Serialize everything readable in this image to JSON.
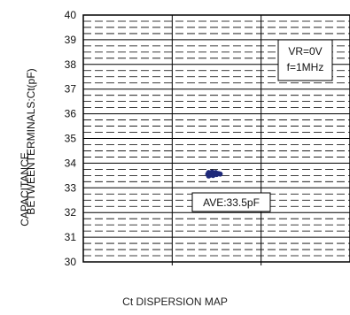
{
  "chart_data": {
    "type": "scatter",
    "title": "Ct DISPERSION MAP",
    "ylabel_lines": [
      "CAPACITANCE",
      "BETWEENTERMINALS:Ct(pF)"
    ],
    "xlabel": "",
    "ylim": [
      30,
      40
    ],
    "yticks": [
      30,
      31,
      32,
      33,
      34,
      35,
      36,
      37,
      38,
      39,
      40
    ],
    "x_range": [
      0,
      3
    ],
    "grid": true,
    "conditions": [
      "VR=0V",
      "f=1MHz"
    ],
    "average_label": "AVE:33.5pF",
    "series": [
      {
        "color": "#1f2a7a",
        "points": [
          {
            "x": 1.4,
            "y": 33.55
          },
          {
            "x": 1.41,
            "y": 33.62
          },
          {
            "x": 1.41,
            "y": 33.48
          },
          {
            "x": 1.43,
            "y": 33.6
          },
          {
            "x": 1.43,
            "y": 33.52
          },
          {
            "x": 1.45,
            "y": 33.57
          },
          {
            "x": 1.45,
            "y": 33.64
          },
          {
            "x": 1.46,
            "y": 33.5
          },
          {
            "x": 1.48,
            "y": 33.58
          },
          {
            "x": 1.49,
            "y": 33.62
          },
          {
            "x": 1.5,
            "y": 33.54
          },
          {
            "x": 1.52,
            "y": 33.58
          },
          {
            "x": 1.54,
            "y": 33.56
          }
        ]
      }
    ]
  }
}
